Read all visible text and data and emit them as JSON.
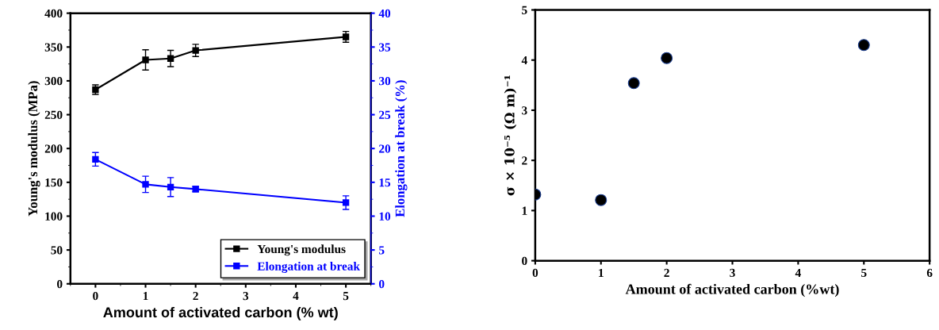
{
  "chart_data": [
    {
      "type": "line",
      "xlabel": "Amount of activated carbon (% wt)",
      "ylabel": "Young's modulus (MPa)",
      "y2label": "Elongation at break (%)",
      "x": [
        0,
        1,
        1.5,
        2,
        5
      ],
      "xlim": [
        -0.5,
        5.5
      ],
      "xticks": [
        0,
        1,
        2,
        3,
        4,
        5
      ],
      "ylim": [
        0,
        400
      ],
      "yticks": [
        0,
        50,
        100,
        150,
        200,
        250,
        300,
        350,
        400
      ],
      "y2lim": [
        0,
        40
      ],
      "y2ticks": [
        0,
        5,
        10,
        15,
        20,
        25,
        30,
        35,
        40
      ],
      "marker": "square",
      "line_style": "solid",
      "legend": "bottom right",
      "grid": false,
      "series": [
        {
          "name": "Young's modulus",
          "color": "#000000",
          "values": [
            287,
            331,
            333,
            345,
            365
          ],
          "errors": [
            7,
            15,
            12,
            9,
            8
          ]
        },
        {
          "name": "Elongation at break",
          "color": "#0000ff",
          "axis": "y2",
          "values": [
            18.4,
            14.7,
            14.3,
            14.0,
            12.0
          ],
          "errors": [
            1.0,
            1.2,
            1.4,
            0.4,
            1.0
          ]
        }
      ]
    },
    {
      "type": "scatter",
      "xlabel": "Amount of activated carbon (%wt)",
      "ylabel": "σ × 10⁻⁵ (Ω m)⁻¹",
      "x": [
        0,
        1,
        1.5,
        2,
        5
      ],
      "xlim": [
        0,
        6
      ],
      "xticks": [
        0,
        1,
        2,
        3,
        4,
        5,
        6
      ],
      "ylim": [
        0,
        5
      ],
      "yticks": [
        0,
        1,
        2,
        3,
        4,
        5
      ],
      "marker": "circle",
      "grid": false,
      "series": [
        {
          "color": "#000000",
          "values": [
            1.32,
            1.21,
            3.54,
            4.04,
            4.3
          ]
        }
      ]
    }
  ]
}
